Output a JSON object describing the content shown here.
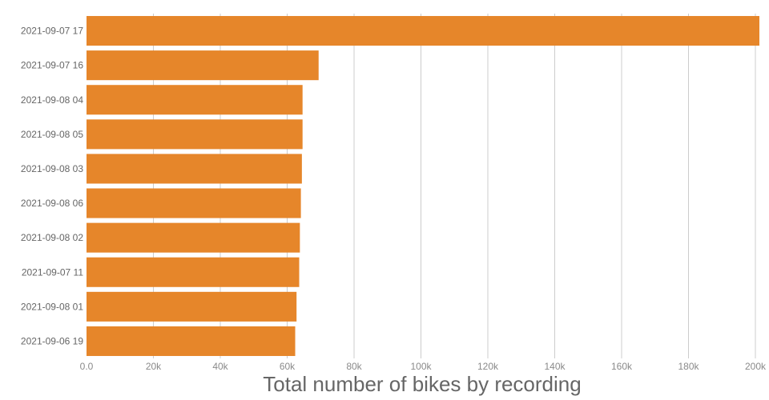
{
  "chart_data": {
    "type": "bar",
    "orientation": "horizontal",
    "title": "",
    "xlabel": "Total number of bikes by recording",
    "ylabel": "",
    "categories": [
      "2021-09-07 17",
      "2021-09-07 16",
      "2021-09-08 04",
      "2021-09-08 05",
      "2021-09-08 03",
      "2021-09-08 06",
      "2021-09-08 02",
      "2021-09-07 11",
      "2021-09-08 01",
      "2021-09-06 19"
    ],
    "values": [
      201200,
      69400,
      64600,
      64600,
      64400,
      64100,
      63800,
      63600,
      62800,
      62400
    ],
    "xlim": [
      0,
      200000
    ],
    "xticks": [
      0,
      20000,
      40000,
      60000,
      80000,
      100000,
      120000,
      140000,
      160000,
      180000,
      200000
    ],
    "xtick_labels": [
      "0.0",
      "20k",
      "40k",
      "60k",
      "80k",
      "100k",
      "120k",
      "140k",
      "160k",
      "180k",
      "200k"
    ],
    "grid": true,
    "bar_color": "#e6862a",
    "grid_color": "#cccccc"
  }
}
